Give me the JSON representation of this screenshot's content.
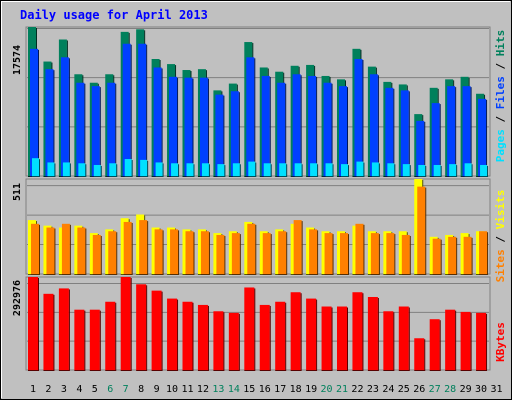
{
  "title": "Daily usage for April 2013",
  "colors": {
    "frame_bg": "#C0C0C0",
    "plot_bg": "#C0C0C0",
    "title": "#0000FF",
    "hits": "#00805C",
    "files": "#0040FF",
    "pages": "#00E0FF",
    "visits": "#FFFF00",
    "sites": "#FF8000",
    "kbytes": "#FF0000",
    "weekend": "#00805C",
    "weekday": "#000000"
  },
  "panels": {
    "top": {
      "ymax_label": "17574",
      "legend": [
        {
          "text": "Pages",
          "color": "#00E0FF"
        },
        {
          "text": " / ",
          "color": "#000000"
        },
        {
          "text": "Files",
          "color": "#0040FF"
        },
        {
          "text": " / ",
          "color": "#000000"
        },
        {
          "text": "Hits",
          "color": "#00805C"
        }
      ]
    },
    "middle": {
      "ymax_label": "511",
      "legend": [
        {
          "text": "Sites",
          "color": "#FF8000"
        },
        {
          "text": " / ",
          "color": "#000000"
        },
        {
          "text": "Visits",
          "color": "#FFFF00"
        }
      ]
    },
    "bottom": {
      "ymax_label": "292976",
      "legend": [
        {
          "text": "KBytes",
          "color": "#FF0000"
        }
      ]
    }
  },
  "chart_data": [
    {
      "type": "bar",
      "title": "Daily usage for April 2013",
      "categories": [
        "1",
        "2",
        "3",
        "4",
        "5",
        "6",
        "7",
        "8",
        "9",
        "10",
        "11",
        "12",
        "13",
        "14",
        "15",
        "16",
        "17",
        "18",
        "19",
        "20",
        "21",
        "22",
        "23",
        "24",
        "25",
        "26",
        "27",
        "28",
        "29",
        "30",
        "31"
      ],
      "weekend_days": [
        "6",
        "7",
        "13",
        "14",
        "20",
        "21",
        "27",
        "28"
      ],
      "ymax": 17574,
      "series": [
        {
          "name": "Hits",
          "values": [
            17574,
            13500,
            16100,
            12000,
            11000,
            12000,
            17000,
            17300,
            13800,
            13200,
            12500,
            12600,
            10100,
            10900,
            15800,
            12800,
            12300,
            13000,
            13100,
            11800,
            11400,
            15000,
            12900,
            11100,
            10800,
            7300,
            10400,
            11400,
            11700,
            9700,
            0
          ]
        },
        {
          "name": "Files",
          "values": [
            15000,
            12600,
            14000,
            11000,
            10600,
            11000,
            15600,
            15600,
            12800,
            11700,
            11600,
            11600,
            9600,
            10000,
            14000,
            11800,
            11000,
            12000,
            11800,
            11000,
            10600,
            13800,
            12000,
            10400,
            10100,
            6500,
            8600,
            10600,
            10600,
            9100,
            0
          ]
        },
        {
          "name": "Pages",
          "values": [
            2100,
            1600,
            1600,
            1500,
            1300,
            1500,
            2000,
            1900,
            1600,
            1500,
            1500,
            1500,
            1400,
            1500,
            1700,
            1500,
            1500,
            1500,
            1500,
            1500,
            1400,
            1700,
            1600,
            1500,
            1400,
            1300,
            1300,
            1400,
            1500,
            1300,
            0
          ]
        }
      ]
    },
    {
      "type": "bar",
      "categories": [
        "1",
        "2",
        "3",
        "4",
        "5",
        "6",
        "7",
        "8",
        "9",
        "10",
        "11",
        "12",
        "13",
        "14",
        "15",
        "16",
        "17",
        "18",
        "19",
        "20",
        "21",
        "22",
        "23",
        "24",
        "25",
        "26",
        "27",
        "28",
        "29",
        "30",
        "31"
      ],
      "ymax": 511,
      "series": [
        {
          "name": "Visits",
          "values": [
            290,
            260,
            250,
            260,
            220,
            240,
            300,
            320,
            250,
            250,
            240,
            240,
            220,
            230,
            280,
            230,
            240,
            270,
            250,
            230,
            230,
            260,
            230,
            230,
            230,
            511,
            200,
            210,
            220,
            230,
            0
          ]
        },
        {
          "name": "Sites",
          "values": [
            270,
            250,
            270,
            250,
            210,
            230,
            280,
            290,
            240,
            240,
            230,
            230,
            210,
            220,
            270,
            220,
            230,
            290,
            240,
            220,
            220,
            270,
            220,
            220,
            210,
            470,
            190,
            200,
            200,
            230,
            0
          ]
        }
      ]
    },
    {
      "type": "bar",
      "categories": [
        "1",
        "2",
        "3",
        "4",
        "5",
        "6",
        "7",
        "8",
        "9",
        "10",
        "11",
        "12",
        "13",
        "14",
        "15",
        "16",
        "17",
        "18",
        "19",
        "20",
        "21",
        "22",
        "23",
        "24",
        "25",
        "26",
        "27",
        "28",
        "29",
        "30",
        "31"
      ],
      "ymax": 292976,
      "series": [
        {
          "name": "KBytes",
          "values": [
            292976,
            240000,
            257000,
            190000,
            190000,
            215000,
            292976,
            270000,
            250000,
            225000,
            215000,
            205000,
            185000,
            180000,
            260000,
            205000,
            215000,
            245000,
            225000,
            200000,
            200000,
            245000,
            230000,
            185000,
            200000,
            100000,
            160000,
            190000,
            183000,
            180000,
            0
          ]
        }
      ]
    }
  ]
}
